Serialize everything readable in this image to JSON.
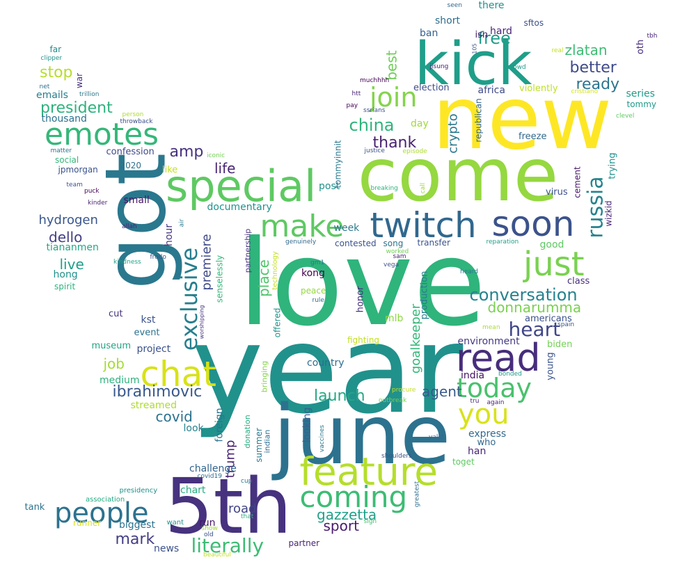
{
  "words": [
    {
      "t": "love",
      "c": "#2fb47c"
    },
    {
      "t": "year",
      "c": "#21918c"
    },
    {
      "t": "come",
      "c": "#95d840"
    },
    {
      "t": "new",
      "c": "#fde725"
    },
    {
      "t": "got",
      "c": "#2a788e"
    },
    {
      "t": "june",
      "c": "#2c728e"
    },
    {
      "t": "5th",
      "c": "#46327e"
    },
    {
      "t": "kick",
      "c": "#1f9e89"
    },
    {
      "t": "special",
      "c": "#5ec962"
    },
    {
      "t": "twitch",
      "c": "#31688e"
    },
    {
      "t": "soon",
      "c": "#3b528b"
    },
    {
      "t": "make",
      "c": "#5ec962"
    },
    {
      "t": "emotes",
      "c": "#35b779"
    },
    {
      "t": "feature",
      "c": "#b5de2b"
    },
    {
      "t": "chat",
      "c": "#d8e219"
    },
    {
      "t": "read",
      "c": "#472d7b"
    },
    {
      "t": "just",
      "c": "#7ad151"
    },
    {
      "t": "exclusive",
      "c": "#277f8e"
    },
    {
      "t": "coming",
      "c": "#3dbc74"
    },
    {
      "t": "people",
      "c": "#2c728e"
    },
    {
      "t": "today",
      "c": "#4ac16d"
    },
    {
      "t": "you",
      "c": "#d8e219"
    },
    {
      "t": "russia",
      "c": "#25838e"
    },
    {
      "t": "join",
      "c": "#84d44b"
    },
    {
      "t": "conversation",
      "c": "#26828e"
    },
    {
      "t": "literally",
      "c": "#3dbc74"
    },
    {
      "t": "heart",
      "c": "#404688"
    },
    {
      "t": "president",
      "c": "#2db27d"
    },
    {
      "t": "mark",
      "c": "#433e85"
    },
    {
      "t": "free",
      "c": "#1f9e89"
    },
    {
      "t": "china",
      "c": "#2fb47c"
    },
    {
      "t": "thank",
      "c": "#481f70"
    },
    {
      "t": "better",
      "c": "#3e4a89"
    },
    {
      "t": "ready",
      "c": "#2b748e"
    },
    {
      "t": "zlatan",
      "c": "#3dbc74"
    },
    {
      "t": "life",
      "c": "#482374"
    },
    {
      "t": "amp",
      "c": "#46327e"
    },
    {
      "t": "stop",
      "c": "#b5de2b"
    },
    {
      "t": "job",
      "c": "#a5db36"
    },
    {
      "t": "ibrahimovic",
      "c": "#38588c"
    },
    {
      "t": "donnarumma",
      "c": "#7ad151"
    },
    {
      "t": "launch",
      "c": "#22a884"
    },
    {
      "t": "covid",
      "c": "#2c728e"
    },
    {
      "t": "gazzetta",
      "c": "#1fa188"
    },
    {
      "t": "sport",
      "c": "#481b6d"
    },
    {
      "t": "road",
      "c": "#414487"
    },
    {
      "t": "best",
      "c": "#6ece58"
    },
    {
      "t": "crypto",
      "c": "#2a788e"
    },
    {
      "t": "premiere",
      "c": "#3e4a89"
    },
    {
      "t": "place",
      "c": "#50c46a"
    },
    {
      "t": "agent",
      "c": "#375a8c"
    },
    {
      "t": "goalkeeper",
      "c": "#35b779"
    },
    {
      "t": "trump",
      "c": "#482374"
    },
    {
      "t": "dello",
      "c": "#433e85"
    },
    {
      "t": "live",
      "c": "#1f9e89"
    },
    {
      "t": "hydrogen",
      "c": "#39568c"
    },
    {
      "t": "emails",
      "c": "#287d8e"
    },
    {
      "t": "thousand",
      "c": "#2c728e"
    },
    {
      "t": "documentary",
      "c": "#20928c"
    },
    {
      "t": "challenge",
      "c": "#32648e"
    },
    {
      "t": "environment",
      "c": "#443983"
    },
    {
      "t": "series",
      "c": "#1e9b8a"
    },
    {
      "t": "country",
      "c": "#2e6e8e"
    },
    {
      "t": "express",
      "c": "#31688e"
    },
    {
      "t": "streamed",
      "c": "#addc30"
    },
    {
      "t": "kst",
      "c": "#3b528b"
    },
    {
      "t": "project",
      "c": "#3b528b"
    },
    {
      "t": "tiananmen",
      "c": "#22a884"
    },
    {
      "t": "hong",
      "c": "#20928c"
    },
    {
      "t": "kong",
      "c": "#440154"
    },
    {
      "t": "post",
      "c": "#20928c"
    },
    {
      "t": "week",
      "c": "#29798e"
    },
    {
      "t": "small",
      "c": "#481769"
    },
    {
      "t": "hour",
      "c": "#453781"
    },
    {
      "t": "look",
      "c": "#26828e"
    },
    {
      "t": "looking",
      "c": "#34618d"
    },
    {
      "t": "foreign",
      "c": "#2c728e"
    },
    {
      "t": "han",
      "c": "#482475"
    },
    {
      "t": "india",
      "c": "#471063"
    },
    {
      "t": "medium",
      "c": "#2db27d"
    },
    {
      "t": "museum",
      "c": "#20a386"
    },
    {
      "t": "biggest",
      "c": "#2c728e"
    },
    {
      "t": "chart",
      "c": "#27ad81"
    },
    {
      "t": "news",
      "c": "#3b528b"
    },
    {
      "t": "run",
      "c": "#481769"
    },
    {
      "t": "production",
      "c": "#287d8e"
    },
    {
      "t": "honor",
      "c": "#46307e"
    },
    {
      "t": "mlb",
      "c": "#90d743"
    },
    {
      "t": "day",
      "c": "#a0da39"
    },
    {
      "t": "short",
      "c": "#2e6e8e"
    },
    {
      "t": "ban",
      "c": "#34618d"
    },
    {
      "t": "hard",
      "c": "#482475"
    },
    {
      "t": "africa",
      "c": "#3e4a89"
    },
    {
      "t": "election",
      "c": "#3e4c8a"
    },
    {
      "t": "violently",
      "c": "#bddf26"
    },
    {
      "t": "republican",
      "c": "#32648e"
    },
    {
      "t": "freeze",
      "c": "#31688e"
    },
    {
      "t": "cement",
      "c": "#481769"
    },
    {
      "t": "trying",
      "c": "#20928c"
    },
    {
      "t": "wizkid",
      "c": "#482475"
    },
    {
      "t": "virus",
      "c": "#3b528b"
    },
    {
      "t": "good",
      "c": "#5ec962"
    },
    {
      "t": "class",
      "c": "#46307e"
    },
    {
      "t": "americans",
      "c": "#3b528b"
    },
    {
      "t": "biden",
      "c": "#73d056"
    },
    {
      "t": "young",
      "c": "#3b528b"
    },
    {
      "t": "who",
      "c": "#31688e"
    },
    {
      "t": "toget",
      "c": "#5ec962"
    },
    {
      "t": "tommy",
      "c": "#1e9b8a"
    },
    {
      "t": "oth",
      "c": "#472c7a"
    },
    {
      "t": "there",
      "c": "#20928c"
    },
    {
      "t": "isn",
      "c": "#481769"
    },
    {
      "t": "sftos",
      "c": "#3b528b"
    },
    {
      "t": "tommyinnit",
      "c": "#2a788e"
    },
    {
      "t": "confession",
      "c": "#3e4a89"
    },
    {
      "t": "jpmorgan",
      "c": "#3b528b"
    },
    {
      "t": "social",
      "c": "#35b779"
    },
    {
      "t": "like",
      "c": "#c2df23"
    },
    {
      "t": "2020",
      "c": "#2c728e"
    },
    {
      "t": "war",
      "c": "#46327e"
    },
    {
      "t": "far",
      "c": "#238a8d"
    },
    {
      "t": "spirit",
      "c": "#2db27d"
    },
    {
      "t": "event",
      "c": "#2c728e"
    },
    {
      "t": "cut",
      "c": "#46327e"
    },
    {
      "t": "contested",
      "c": "#3b528b"
    },
    {
      "t": "song",
      "c": "#2c728e"
    },
    {
      "t": "transfer",
      "c": "#3b528b"
    },
    {
      "t": "peace",
      "c": "#95d840"
    },
    {
      "t": "fighting",
      "c": "#c2df23"
    },
    {
      "t": "senselessly",
      "c": "#35b779"
    },
    {
      "t": "partnership",
      "c": "#46327e"
    },
    {
      "t": "technology",
      "c": "#c2df23"
    },
    {
      "t": "offered",
      "c": "#21918c"
    },
    {
      "t": "bringing",
      "c": "#84d44b"
    },
    {
      "t": "summer",
      "c": "#2a788e"
    },
    {
      "t": "indian",
      "c": "#2e6e8e"
    },
    {
      "t": "donation",
      "c": "#27ad81"
    },
    {
      "t": "tank",
      "c": "#2c728e"
    },
    {
      "t": "runner",
      "c": "#d8e219"
    },
    {
      "t": "partner",
      "c": "#482475"
    },
    {
      "t": "presidency",
      "c": "#20928c"
    },
    {
      "t": "association",
      "c": "#25ab82"
    },
    {
      "t": "want",
      "c": "#20928c"
    },
    {
      "t": "that",
      "c": "#2db27d"
    },
    {
      "t": "show",
      "c": "#a0da39"
    },
    {
      "t": "old",
      "c": "#3b528b"
    },
    {
      "t": "beautiful",
      "c": "#c2df23"
    },
    {
      "t": "sign",
      "c": "#4ac16d"
    },
    {
      "t": "cup",
      "c": "#2a788e"
    },
    {
      "t": "covid19",
      "c": "#2e6e8e"
    },
    {
      "t": "greatest",
      "c": "#2e6e8e"
    },
    {
      "t": "shoulders",
      "c": "#3b528b"
    },
    {
      "t": "vaccines",
      "c": "#2a788e"
    },
    {
      "t": "valid",
      "c": "#31688e"
    },
    {
      "t": "tru",
      "c": "#472c7a"
    },
    {
      "t": "again",
      "c": "#482475"
    },
    {
      "t": "procure",
      "c": "#c2df23"
    },
    {
      "t": "outbreak",
      "c": "#73d056"
    },
    {
      "t": "bonded",
      "c": "#1e9b8a"
    },
    {
      "t": "spain",
      "c": "#3b528b"
    },
    {
      "t": "mean",
      "c": "#addc30"
    },
    {
      "t": "heard",
      "c": "#2a788e"
    },
    {
      "t": "reparation",
      "c": "#1fa188"
    },
    {
      "t": "sam",
      "c": "#482475"
    },
    {
      "t": "worked",
      "c": "#73d056"
    },
    {
      "t": "vega",
      "c": "#3b528b"
    },
    {
      "t": "call",
      "c": "#a0da39"
    },
    {
      "t": "breaking",
      "c": "#2db27d"
    },
    {
      "t": "genuinely",
      "c": "#31688e"
    },
    {
      "t": "gm1",
      "c": "#2a788e"
    },
    {
      "t": "rule",
      "c": "#2e6e8e"
    },
    {
      "t": "worshipping",
      "c": "#46327e"
    },
    {
      "t": "frodo",
      "c": "#3b528b"
    },
    {
      "t": "kindness",
      "c": "#20a386"
    },
    {
      "t": "air",
      "c": "#2a788e"
    },
    {
      "t": "allah",
      "c": "#482475"
    },
    {
      "t": "kinder",
      "c": "#482475"
    },
    {
      "t": "puck",
      "c": "#440154"
    },
    {
      "t": "team",
      "c": "#3b528b"
    },
    {
      "t": "iconic",
      "c": "#73d056"
    },
    {
      "t": "matter",
      "c": "#2c728e"
    },
    {
      "t": "person",
      "c": "#addc30"
    },
    {
      "t": "throwback",
      "c": "#3b528b"
    },
    {
      "t": "trillion",
      "c": "#2a788e"
    },
    {
      "t": "net",
      "c": "#2e6e8e"
    },
    {
      "t": "clipper",
      "c": "#20928c"
    },
    {
      "t": "htt",
      "c": "#482475"
    },
    {
      "t": "pay",
      "c": "#440154"
    },
    {
      "t": "ssrians",
      "c": "#3b528b"
    },
    {
      "t": "justice",
      "c": "#3b528b"
    },
    {
      "t": "episode",
      "c": "#addc30"
    },
    {
      "t": "muchhhh",
      "c": "#440154"
    },
    {
      "t": "jisung",
      "c": "#482475"
    },
    {
      "t": "crowd",
      "c": "#1e9b8a"
    },
    {
      "t": "cristiano",
      "c": "#d8e219"
    },
    {
      "t": "clevel",
      "c": "#5ec962"
    },
    {
      "t": "105",
      "c": "#3b528b"
    },
    {
      "t": "seen",
      "c": "#31688e"
    },
    {
      "t": "real",
      "c": "#c2df23"
    },
    {
      "t": "tbh",
      "c": "#482475"
    }
  ]
}
